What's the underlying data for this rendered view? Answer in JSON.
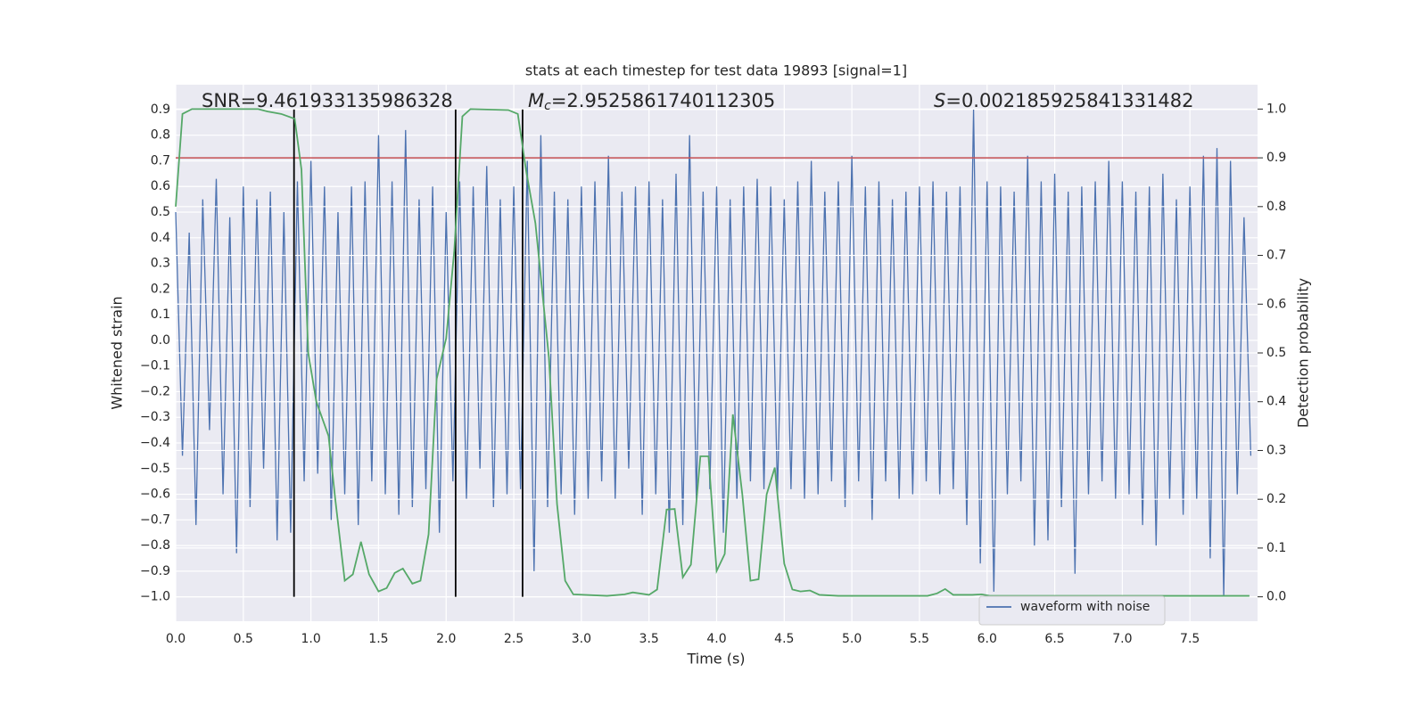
{
  "chart_data": {
    "type": "line",
    "title": "stats at each timestep for test data 19893 [signal=1]",
    "xlabel": "Time (s)",
    "ylabel": "Whitened strain",
    "y2label": "Detection probability",
    "annotations": [
      {
        "text": "SNR=9.461933135986328"
      },
      {
        "symbol": "M",
        "subscript": "c",
        "text": "=2.9525861740112305"
      },
      {
        "symbol": "S",
        "text": "=0.002185925841331482"
      }
    ],
    "xlim": [
      0,
      8.0
    ],
    "ylim": [
      -1.095,
      0.997
    ],
    "y2lim": [
      -0.05,
      1.05
    ],
    "xticks": [
      {
        "value": 0,
        "label": "0.0"
      },
      0.5,
      {
        "value": 1,
        "label": "1.0"
      },
      1.5,
      {
        "value": 2,
        "label": "2.0"
      },
      2.5,
      {
        "value": 3,
        "label": "3.0"
      },
      3.5,
      {
        "value": 4,
        "label": "4.0"
      },
      4.5,
      {
        "value": 5,
        "label": "5.0"
      },
      5.5,
      {
        "value": 6,
        "label": "6.0"
      },
      6.5,
      {
        "value": 7,
        "label": "7.0"
      },
      7.5
    ],
    "yticks": [
      {
        "value": -1,
        "label": "−1.0"
      },
      {
        "value": -0.9,
        "label": "−0.9"
      },
      {
        "value": -0.8,
        "label": "−0.8"
      },
      {
        "value": -0.7,
        "label": "−0.7"
      },
      {
        "value": -0.6,
        "label": "−0.6"
      },
      {
        "value": -0.5,
        "label": "−0.5"
      },
      {
        "value": -0.4,
        "label": "−0.4"
      },
      {
        "value": -0.3,
        "label": "−0.3"
      },
      {
        "value": -0.2,
        "label": "−0.2"
      },
      {
        "value": -0.1,
        "label": "−0.1"
      },
      {
        "value": 0,
        "label": "0.0"
      },
      0.1,
      0.2,
      0.3,
      0.4,
      0.5,
      0.6,
      0.7,
      0.8,
      0.9
    ],
    "y2ticks": [
      {
        "value": 0,
        "label": "0.0"
      },
      0.1,
      0.2,
      0.3,
      0.4,
      0.5,
      0.6,
      0.7,
      0.8,
      0.9,
      {
        "value": 1,
        "label": "1.0"
      }
    ],
    "grid": true,
    "legend": "lower right",
    "series": [
      {
        "name": "waveform with noise",
        "color": "#4c72b0",
        "x": [
          0,
          0.05,
          0.1,
          0.15,
          0.2,
          0.25,
          0.3,
          0.35,
          0.4,
          0.45,
          0.5,
          0.55,
          0.6,
          0.65,
          0.7,
          0.75,
          0.8,
          0.85,
          0.9,
          0.95,
          1,
          1.05,
          1.1,
          1.15,
          1.2,
          1.25,
          1.3,
          1.35,
          1.4,
          1.45,
          1.5,
          1.55,
          1.6,
          1.65,
          1.7,
          1.75,
          1.8,
          1.85,
          1.9,
          1.95,
          2,
          2.05,
          2.1,
          2.15,
          2.2,
          2.25,
          2.3,
          2.35,
          2.4,
          2.45,
          2.5,
          2.55,
          2.6,
          2.65,
          2.7,
          2.75,
          2.8,
          2.85,
          2.9,
          2.95,
          3,
          3.05,
          3.1,
          3.15,
          3.2,
          3.25,
          3.3,
          3.35,
          3.4,
          3.45,
          3.5,
          3.55,
          3.6,
          3.65,
          3.7,
          3.75,
          3.8,
          3.85,
          3.9,
          3.95,
          4,
          4.05,
          4.1,
          4.15,
          4.2,
          4.25,
          4.3,
          4.35,
          4.4,
          4.45,
          4.5,
          4.55,
          4.6,
          4.65,
          4.7,
          4.75,
          4.8,
          4.85,
          4.9,
          4.95,
          5,
          5.05,
          5.1,
          5.15,
          5.2,
          5.25,
          5.3,
          5.35,
          5.4,
          5.45,
          5.5,
          5.55,
          5.6,
          5.65,
          5.7,
          5.75,
          5.8,
          5.85,
          5.9,
          5.95,
          6,
          6.05,
          6.1,
          6.15,
          6.2,
          6.25,
          6.3,
          6.35,
          6.4,
          6.45,
          6.5,
          6.55,
          6.6,
          6.65,
          6.7,
          6.75,
          6.8,
          6.85,
          6.9,
          6.95,
          7,
          7.05,
          7.1,
          7.15,
          7.2,
          7.25,
          7.3,
          7.35,
          7.4,
          7.45,
          7.5,
          7.55,
          7.6,
          7.65,
          7.7,
          7.75,
          7.8,
          7.85,
          7.9,
          7.95
        ],
        "values": [
          0.5,
          -0.45,
          0.42,
          -0.72,
          0.55,
          -0.35,
          0.63,
          -0.6,
          0.48,
          -0.83,
          0.6,
          -0.65,
          0.55,
          -0.5,
          0.58,
          -0.78,
          0.5,
          -0.75,
          0.62,
          -0.55,
          0.7,
          -0.52,
          0.6,
          -0.7,
          0.5,
          -0.6,
          0.6,
          -0.72,
          0.62,
          -0.55,
          0.8,
          -0.6,
          0.62,
          -0.68,
          0.82,
          -0.65,
          0.55,
          -0.58,
          0.6,
          -0.75,
          0.5,
          -0.55,
          0.62,
          -0.62,
          0.6,
          -0.5,
          0.68,
          -0.65,
          0.55,
          -0.6,
          0.6,
          -0.58,
          0.7,
          -0.9,
          0.8,
          -0.65,
          0.58,
          -0.6,
          0.55,
          -0.68,
          0.6,
          -0.62,
          0.62,
          -0.55,
          0.72,
          -0.62,
          0.58,
          -0.5,
          0.6,
          -0.68,
          0.62,
          -0.6,
          0.55,
          -0.75,
          0.65,
          -0.72,
          0.8,
          -0.62,
          0.58,
          -0.58,
          0.6,
          -0.75,
          0.55,
          -0.62,
          0.6,
          -0.55,
          0.63,
          -0.58,
          0.6,
          -0.6,
          0.55,
          -0.58,
          0.62,
          -0.62,
          0.7,
          -0.6,
          0.58,
          -0.55,
          0.62,
          -0.65,
          0.72,
          -0.55,
          0.6,
          -0.7,
          0.62,
          -0.55,
          0.55,
          -0.62,
          0.58,
          -0.6,
          0.6,
          -0.55,
          0.62,
          -0.6,
          0.58,
          -0.58,
          0.6,
          -0.72,
          0.9,
          -0.87,
          0.62,
          -0.98,
          0.6,
          -0.6,
          0.58,
          -0.55,
          0.72,
          -0.8,
          0.62,
          -0.78,
          0.65,
          -0.65,
          0.58,
          -0.91,
          0.6,
          -0.6,
          0.62,
          -0.55,
          0.7,
          -0.62,
          0.62,
          -0.6,
          0.58,
          -0.72,
          0.6,
          -0.8,
          0.65,
          -0.62,
          0.55,
          -0.68,
          0.6,
          -0.62,
          0.72,
          -0.85,
          0.75,
          -1.0,
          0.7,
          -0.6,
          0.48,
          -0.45
        ]
      },
      {
        "color": "#55a868",
        "axis": "y2",
        "x": [
          0,
          0.05,
          0.12,
          0.61,
          0.68,
          0.78,
          0.88,
          0.93,
          0.98,
          1.04,
          1.13,
          1.18,
          1.25,
          1.31,
          1.37,
          1.43,
          1.5,
          1.56,
          1.62,
          1.68,
          1.75,
          1.81,
          1.87,
          1.93,
          2.0,
          2.06,
          2.12,
          2.18,
          2.46,
          2.53,
          2.59,
          2.66,
          2.76,
          2.82,
          2.88,
          2.94,
          3.19,
          3.32,
          3.38,
          3.5,
          3.56,
          3.63,
          3.69,
          3.75,
          3.81,
          3.88,
          3.94,
          4.0,
          4.06,
          4.12,
          4.19,
          4.25,
          4.31,
          4.37,
          4.43,
          4.5,
          4.56,
          4.62,
          4.69,
          4.76,
          4.9,
          5.56,
          5.63,
          5.69,
          5.75,
          5.89,
          5.96,
          6.02,
          7.94
        ],
        "values": [
          0.8,
          0.99,
          1.0,
          1.0,
          0.995,
          0.99,
          0.98,
          0.876,
          0.5,
          0.4,
          0.33,
          0.2,
          0.033,
          0.046,
          0.113,
          0.046,
          0.011,
          0.018,
          0.049,
          0.058,
          0.027,
          0.033,
          0.128,
          0.447,
          0.53,
          0.71,
          0.985,
          1.0,
          0.998,
          0.99,
          0.876,
          0.766,
          0.49,
          0.19,
          0.033,
          0.005,
          0.002,
          0.005,
          0.009,
          0.004,
          0.015,
          0.179,
          0.18,
          0.04,
          0.066,
          0.288,
          0.288,
          0.053,
          0.088,
          0.374,
          0.21,
          0.033,
          0.036,
          0.21,
          0.265,
          0.068,
          0.015,
          0.011,
          0.013,
          0.004,
          0.002,
          0.002,
          0.007,
          0.016,
          0.004,
          0.004,
          0.005,
          0.002,
          0.002
        ]
      }
    ],
    "hlines": [
      {
        "axis": "y2",
        "value": 0.9,
        "color": "#c44e52"
      }
    ],
    "vlines": [
      {
        "x": 0.875,
        "ymin": -1.0,
        "ymax": 0.9,
        "color": "#000000"
      },
      {
        "x": 2.07,
        "ymin": -1.0,
        "ymax": 0.9,
        "color": "#000000"
      },
      {
        "x": 2.565,
        "ymin": -1.0,
        "ymax": 0.9,
        "color": "#000000"
      }
    ]
  }
}
